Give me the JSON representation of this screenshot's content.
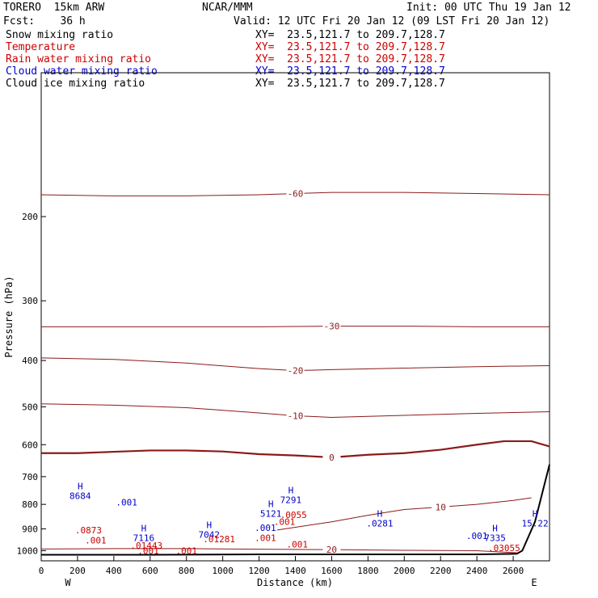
{
  "header": {
    "model": "TORERO  15km ARW",
    "org": "NCAR/MMM",
    "init": "Init: 00 UTC Thu 19 Jan 12",
    "fcst": "Fcst:    36 h",
    "valid": "Valid: 12 UTC Fri 20 Jan 12 (09 LST Fri 20 Jan 12)"
  },
  "fields": [
    {
      "label": "Snow mixing ratio",
      "xy": "XY=  23.5,121.7 to 209.7,128.7",
      "color": "#000000"
    },
    {
      "label": "Temperature",
      "xy": "XY=  23.5,121.7 to 209.7,128.7",
      "color": "#cc0000"
    },
    {
      "label": "Rain water mixing ratio",
      "xy": "XY=  23.5,121.7 to 209.7,128.7",
      "color": "#cc0000"
    },
    {
      "label": "Cloud water mixing ratio",
      "xy": "XY=  23.5,121.7 to 209.7,128.7",
      "color": "#0000cc"
    },
    {
      "label": "Cloud ice mixing ratio",
      "xy": "XY=  23.5,121.7 to 209.7,128.7",
      "color": "#000000"
    }
  ],
  "chart_data": {
    "type": "line",
    "xlabel": "Distance (km)",
    "ylabel": "Pressure (hPa)",
    "xlim": [
      0,
      2800
    ],
    "ylim": [
      1050,
      100
    ],
    "y_scale": "log",
    "x_ticks": [
      0,
      200,
      400,
      600,
      800,
      1000,
      1200,
      1400,
      1600,
      1800,
      2000,
      2200,
      2400,
      2600
    ],
    "y_ticks": [
      200,
      300,
      400,
      500,
      600,
      700,
      800,
      900,
      1000
    ],
    "x_end_labels": {
      "left": "W",
      "right": "E"
    },
    "temperature_isotherms": [
      {
        "label": "-60",
        "x": [
          0,
          400,
          800,
          1200,
          1400,
          1600,
          2000,
          2400,
          2800
        ],
        "p": [
          180,
          181,
          181,
          180,
          179,
          178,
          178,
          179,
          180
        ]
      },
      {
        "label": "-30",
        "x": [
          0,
          400,
          800,
          1200,
          1600,
          2000,
          2400,
          2800
        ],
        "p": [
          340,
          340,
          340,
          340,
          339,
          339,
          340,
          340
        ]
      },
      {
        "label": "-20",
        "x": [
          0,
          400,
          800,
          1200,
          1400,
          1600,
          2000,
          2400,
          2800
        ],
        "p": [
          395,
          398,
          405,
          416,
          420,
          418,
          415,
          412,
          410
        ]
      },
      {
        "label": "-10",
        "x": [
          0,
          400,
          800,
          1200,
          1400,
          1600,
          2000,
          2400,
          2800
        ],
        "p": [
          493,
          496,
          502,
          515,
          522,
          526,
          521,
          516,
          512
        ]
      },
      {
        "label": "0",
        "x": [
          0,
          200,
          400,
          600,
          800,
          1000,
          1200,
          1400,
          1600,
          1800,
          2000,
          2200,
          2400,
          2550,
          2700,
          2800
        ],
        "p": [
          625,
          625,
          621,
          617,
          617,
          620,
          628,
          632,
          638,
          630,
          625,
          615,
          600,
          590,
          590,
          605
        ]
      },
      {
        "label": "10",
        "x": [
          1300,
          1600,
          1800,
          2000,
          2200,
          2400,
          2600,
          2700
        ],
        "p": [
          905,
          870,
          843,
          820,
          810,
          800,
          785,
          775
        ]
      },
      {
        "label": "20",
        "x": [
          0,
          400,
          800,
          1200,
          1600,
          2000,
          2400,
          2620
        ],
        "p": [
          992,
          990,
          990,
          993,
          995,
          998,
          1000,
          1010
        ]
      }
    ],
    "ground": {
      "x": [
        0,
        600,
        1200,
        1800,
        2400,
        2620,
        2650,
        2720,
        2800
      ],
      "p": [
        1020,
        1020,
        1018,
        1018,
        1018,
        1015,
        1000,
        870,
        660
      ]
    },
    "maxima": [
      {
        "x": 215,
        "p": 780,
        "value": "8684"
      },
      {
        "x": 565,
        "p": 955,
        "value": "7116"
      },
      {
        "x": 925,
        "p": 940,
        "value": "7042"
      },
      {
        "x": 1265,
        "p": 850,
        "value": "5121"
      },
      {
        "x": 1375,
        "p": 795,
        "value": "7291"
      },
      {
        "x": 1865,
        "p": 890,
        "value": ".0281"
      },
      {
        "x": 2720,
        "p": 890,
        "value": "15.22"
      },
      {
        "x": 2500,
        "p": 955,
        "value": "7335"
      }
    ],
    "small_labels": [
      {
        "x": 470,
        "p": 805,
        "value": ".001",
        "color": "#0000cc"
      },
      {
        "x": 1235,
        "p": 910,
        "value": ".001",
        "color": "#0000cc"
      },
      {
        "x": 2400,
        "p": 945,
        "value": ".001",
        "color": "#0000cc"
      },
      {
        "x": 260,
        "p": 920,
        "value": ".0873",
        "color": "#cc0000"
      },
      {
        "x": 300,
        "p": 965,
        "value": ".001",
        "color": "#cc0000"
      },
      {
        "x": 580,
        "p": 990,
        "value": ".01443",
        "color": "#cc0000"
      },
      {
        "x": 590,
        "p": 1015,
        "value": ".001",
        "color": "#cc0000"
      },
      {
        "x": 800,
        "p": 1015,
        "value": ".001",
        "color": "#cc0000"
      },
      {
        "x": 980,
        "p": 960,
        "value": ".01281",
        "color": "#cc0000"
      },
      {
        "x": 1235,
        "p": 955,
        "value": ".001",
        "color": "#cc0000"
      },
      {
        "x": 1390,
        "p": 855,
        "value": ".0055",
        "color": "#cc0000"
      },
      {
        "x": 1410,
        "p": 985,
        "value": ".001",
        "color": "#cc0000"
      },
      {
        "x": 1340,
        "p": 883,
        "value": ".001",
        "color": "#cc0000"
      },
      {
        "x": 2550,
        "p": 1002,
        "value": ".03055",
        "color": "#cc0000"
      }
    ]
  }
}
